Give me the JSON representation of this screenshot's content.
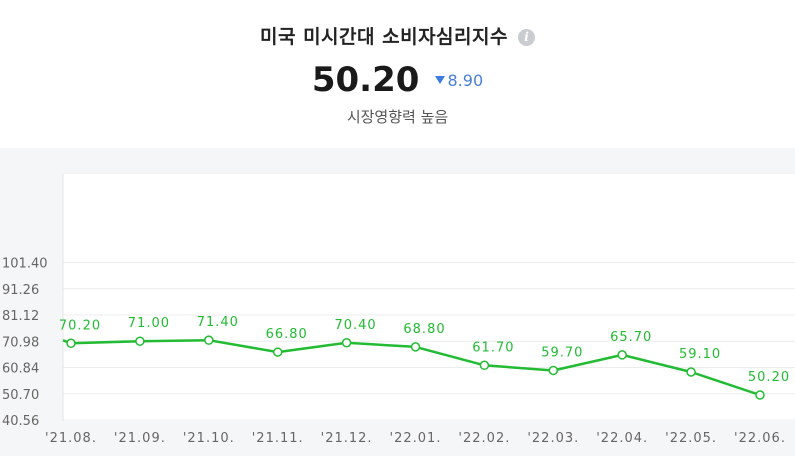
{
  "header": {
    "title": "미국 미시간대 소비자심리지수",
    "info_icon": "info-icon",
    "value": "50.20",
    "change": "8.90",
    "change_direction": "down",
    "importance": "시장영향력 높음"
  },
  "colors": {
    "line": "#22bb33",
    "point_fill": "#ffffff",
    "change_blue": "#3d7be0",
    "background": "#f5f6f8",
    "plot_background": "#ffffff"
  },
  "chart_data": {
    "type": "line",
    "categories": [
      "'21.08.",
      "'21.09.",
      "'21.10.",
      "'21.11.",
      "'21.12.",
      "'22.01.",
      "'22.02.",
      "'22.03.",
      "'22.04.",
      "'22.05.",
      "'22.06."
    ],
    "values": [
      70.2,
      71.0,
      71.4,
      66.8,
      70.4,
      68.8,
      61.7,
      59.7,
      65.7,
      59.1,
      50.2
    ],
    "data_labels": [
      "70.20",
      "71.00",
      "71.40",
      "66.80",
      "70.40",
      "68.80",
      "61.70",
      "59.70",
      "65.70",
      "59.10",
      "50.20"
    ],
    "y_ticks": [
      "40.56",
      "50.70",
      "60.84",
      "70.98",
      "81.12",
      "91.26",
      "101.40"
    ],
    "ylim": [
      40.56,
      101.4
    ],
    "grid": true,
    "title": "",
    "xlabel": "",
    "ylabel": ""
  }
}
